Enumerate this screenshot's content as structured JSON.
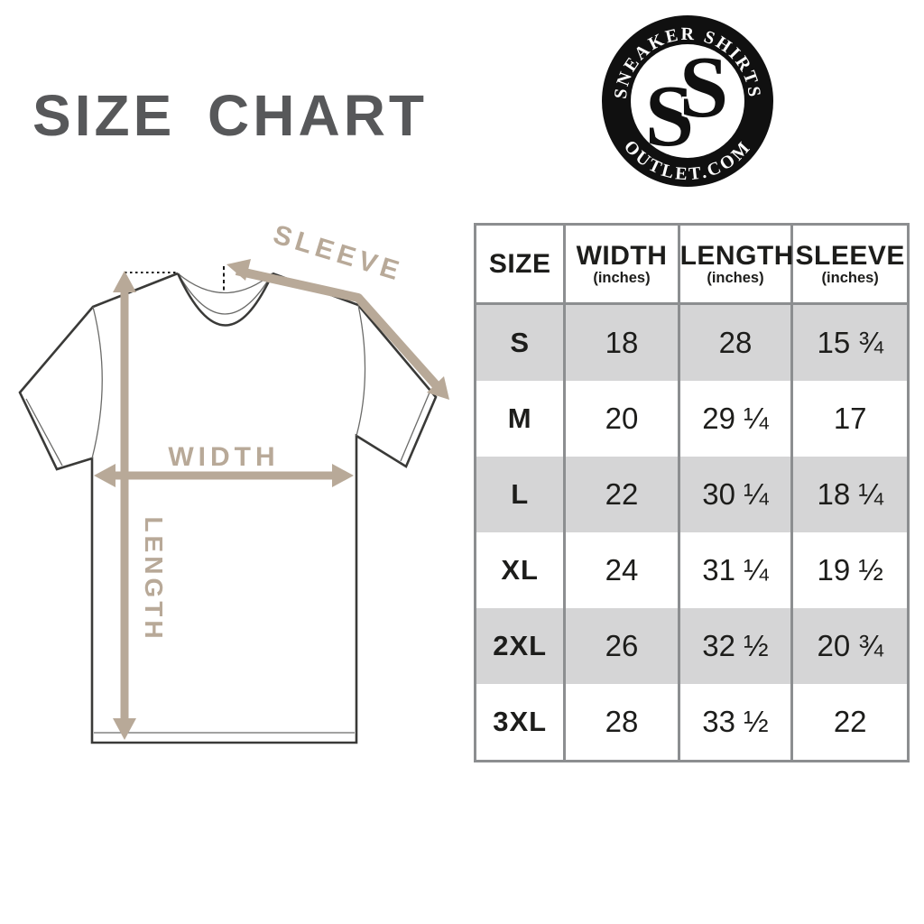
{
  "title": "SIZE CHART",
  "colors": {
    "title": "#57585a",
    "table_border": "#8c8e90",
    "shaded_row": "#d5d5d6",
    "table_text": "#1d1d1b",
    "arrow_tan": "#b8a998",
    "shirt_outline": "#3a3a38",
    "logo_black": "#101010"
  },
  "logo": {
    "top_text": "SNEAKER SHIRTS",
    "bottom_text": "OUTLET.COM",
    "monogram_letters": [
      "S",
      "S"
    ]
  },
  "diagram": {
    "sleeve_label": "SLEEVE",
    "width_label": "WIDTH",
    "length_label": "LENGTH"
  },
  "table": {
    "columns": [
      {
        "label": "SIZE",
        "sub": ""
      },
      {
        "label": "WIDTH",
        "sub": "(inches)"
      },
      {
        "label": "LENGTH",
        "sub": "(inches)"
      },
      {
        "label": "SLEEVE",
        "sub": "(inches)"
      }
    ],
    "rows": [
      {
        "size": "S",
        "width": "18",
        "length": "28",
        "sleeve": "15 ¾",
        "shaded": true
      },
      {
        "size": "M",
        "width": "20",
        "length": "29 ¼",
        "sleeve": "17",
        "shaded": false
      },
      {
        "size": "L",
        "width": "22",
        "length": "30 ¼",
        "sleeve": "18 ¼",
        "shaded": true
      },
      {
        "size": "XL",
        "width": "24",
        "length": "31 ¼",
        "sleeve": "19 ½",
        "shaded": false
      },
      {
        "size": "2XL",
        "width": "26",
        "length": "32 ½",
        "sleeve": "20 ¾",
        "shaded": true
      },
      {
        "size": "3XL",
        "width": "28",
        "length": "33 ½",
        "sleeve": "22",
        "shaded": false
      }
    ]
  }
}
